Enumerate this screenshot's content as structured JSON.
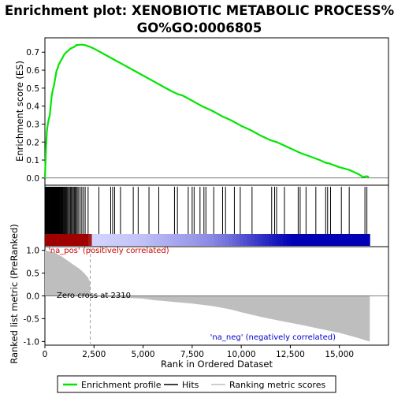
{
  "chart_data": {
    "type": "line",
    "title": "Enrichment plot: XENOBIOTIC METABOLIC PROCESS%GO%GO:0006805",
    "title_lines": [
      "Enrichment plot: XENOBIOTIC METABOLIC PROCESS%",
      "GO%GO:0006805"
    ],
    "colors": {
      "enrichment_line": "#00e600",
      "hits": "#000000",
      "metric_fill": "#bebebe",
      "zero_cross_line": "#a0a0a0",
      "pos_label": "#cc0000",
      "neg_label": "#0000cc",
      "heatmap_red": "#cc0000",
      "heatmap_blue": "#0000b4"
    },
    "top_panel": {
      "ylabel": "Enrichment score (ES)",
      "ylim": [
        -0.04,
        0.78
      ],
      "yticks": [
        "0.0",
        "0.1",
        "0.2",
        "0.3",
        "0.4",
        "0.5",
        "0.6",
        "0.7"
      ],
      "ytick_values": [
        0.0,
        0.1,
        0.2,
        0.3,
        0.4,
        0.5,
        0.6,
        0.7
      ],
      "x": [
        0,
        30,
        60,
        100,
        150,
        200,
        250,
        300,
        350,
        400,
        450,
        500,
        550,
        600,
        650,
        700,
        750,
        800,
        850,
        900,
        950,
        1000,
        1100,
        1200,
        1300,
        1400,
        1500,
        1600,
        1700,
        1800,
        1900,
        2000,
        2100,
        2200,
        2300,
        2500,
        3000,
        3500,
        4000,
        4500,
        5000,
        5500,
        6000,
        6500,
        6800,
        7000,
        7500,
        8000,
        8500,
        9000,
        9500,
        10000,
        10500,
        11000,
        11500,
        11800,
        12000,
        12500,
        13000,
        13500,
        14000,
        14300,
        14500,
        15000,
        15500,
        16000,
        16200,
        16400,
        16500
      ],
      "es": [
        0.0,
        0.08,
        0.18,
        0.26,
        0.3,
        0.33,
        0.35,
        0.41,
        0.46,
        0.49,
        0.51,
        0.54,
        0.57,
        0.6,
        0.61,
        0.63,
        0.64,
        0.65,
        0.66,
        0.67,
        0.68,
        0.69,
        0.7,
        0.71,
        0.72,
        0.725,
        0.73,
        0.74,
        0.74,
        0.742,
        0.742,
        0.74,
        0.738,
        0.733,
        0.73,
        0.72,
        0.69,
        0.66,
        0.63,
        0.6,
        0.57,
        0.54,
        0.51,
        0.48,
        0.465,
        0.46,
        0.43,
        0.4,
        0.375,
        0.345,
        0.32,
        0.29,
        0.265,
        0.235,
        0.21,
        0.2,
        0.19,
        0.165,
        0.14,
        0.12,
        0.1,
        0.085,
        0.08,
        0.06,
        0.045,
        0.02,
        0.005,
        0.01,
        0.005
      ]
    },
    "hits_panel": {
      "hit_positions": [
        20,
        60,
        100,
        140,
        180,
        210,
        240,
        270,
        300,
        320,
        340,
        360,
        380,
        400,
        420,
        440,
        460,
        480,
        500,
        520,
        540,
        560,
        580,
        600,
        620,
        640,
        660,
        680,
        700,
        720,
        740,
        760,
        790,
        820,
        850,
        880,
        910,
        940,
        980,
        1020,
        1060,
        1100,
        1150,
        1200,
        1250,
        1300,
        1350,
        1400,
        1450,
        1500,
        1550,
        1600,
        1650,
        1720,
        1800,
        1880,
        1960,
        2050,
        2200,
        2750,
        3350,
        3450,
        3550,
        3850,
        4500,
        4750,
        5300,
        5800,
        6600,
        6750,
        7300,
        7500,
        7600,
        7900,
        8100,
        8200,
        8600,
        9050,
        9200,
        9650,
        9950,
        10550,
        11550,
        11700,
        11800,
        12200,
        12900,
        13000,
        13300,
        13800,
        14300,
        14400,
        14550,
        15100,
        15500,
        16300,
        16400
      ]
    },
    "heatmap": {
      "note": "Colour band of ranked list metric, red (positive) to blue (negative)"
    },
    "bottom_panel": {
      "ylabel": "Ranked list metric (PreRanked)",
      "xlabel": "Rank in Ordered Dataset",
      "ylim": [
        -1.08,
        1.08
      ],
      "yticks": [
        "1.0",
        "0.5",
        "0.0",
        "-0.5",
        "-1.0"
      ],
      "ytick_values": [
        1.0,
        0.5,
        0.0,
        -0.5,
        -1.0
      ],
      "xlim": [
        0,
        17500
      ],
      "xticks": [
        "0",
        "2,500",
        "5,000",
        "7,500",
        "10,000",
        "12,500",
        "15,000"
      ],
      "xtick_values": [
        0,
        2500,
        5000,
        7500,
        10000,
        12500,
        15000
      ],
      "metric_x": [
        0,
        50,
        100,
        300,
        600,
        900,
        1200,
        1500,
        1800,
        2000,
        2200,
        2300,
        2310,
        2400,
        3000,
        4000,
        5000,
        5500,
        6500,
        7500,
        8500,
        9500,
        10000,
        11000,
        12000,
        13000,
        14000,
        15000,
        15500,
        16000,
        16300,
        16550
      ],
      "metric_y": [
        1.0,
        1.0,
        0.99,
        0.97,
        0.93,
        0.85,
        0.76,
        0.67,
        0.58,
        0.5,
        0.4,
        0.3,
        0.0,
        -0.01,
        -0.02,
        -0.04,
        -0.06,
        -0.09,
        -0.13,
        -0.17,
        -0.22,
        -0.3,
        -0.36,
        -0.46,
        -0.55,
        -0.63,
        -0.72,
        -0.81,
        -0.87,
        -0.93,
        -0.97,
        -1.0
      ],
      "zero_cross": 2310,
      "zero_cross_label": "Zero cross at 2310",
      "pos_label": "'na_pos' (positively correlated)",
      "neg_label": "'na_neg' (negatively correlated)"
    },
    "legend": {
      "placement": "bottom",
      "items": [
        {
          "label": "Enrichment profile",
          "style": "line",
          "color": "#00e600"
        },
        {
          "label": "Hits",
          "style": "line",
          "color": "#000000"
        },
        {
          "label": "Ranking metric scores",
          "style": "line",
          "color": "#bebebe"
        }
      ]
    }
  }
}
